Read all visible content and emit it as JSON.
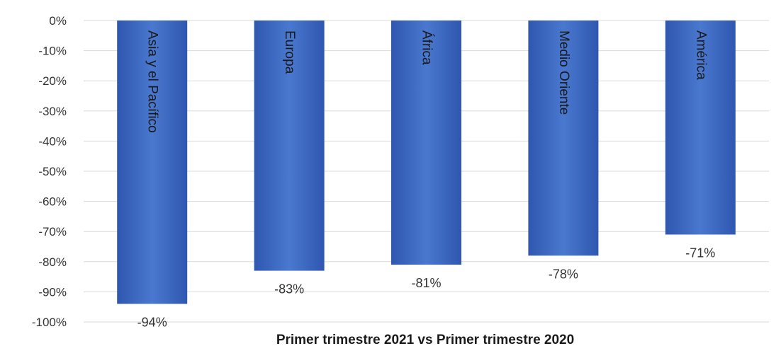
{
  "chart_data": {
    "type": "bar",
    "categories": [
      "Asia y el Pacífico",
      "Europa",
      "África",
      "Medio Oriente",
      "América"
    ],
    "values": [
      -94,
      -83,
      -81,
      -78,
      -71
    ],
    "data_labels": [
      "-94%",
      "-83%",
      "-81%",
      "-78%",
      "-71%"
    ],
    "xlabel": "Primer trimestre 2021 vs Primer trimestre 2020",
    "ylabel": "",
    "ylim": [
      -100,
      0
    ],
    "y_ticks": [
      0,
      -10,
      -20,
      -30,
      -40,
      -50,
      -60,
      -70,
      -80,
      -90,
      -100
    ],
    "y_tick_labels": [
      "0%",
      "-10%",
      "-20%",
      "-30%",
      "-40%",
      "-50%",
      "-60%",
      "-70%",
      "-80%",
      "-90%",
      "-100%"
    ],
    "grid": true,
    "legend": "none",
    "bar_color": "#4472c4"
  }
}
